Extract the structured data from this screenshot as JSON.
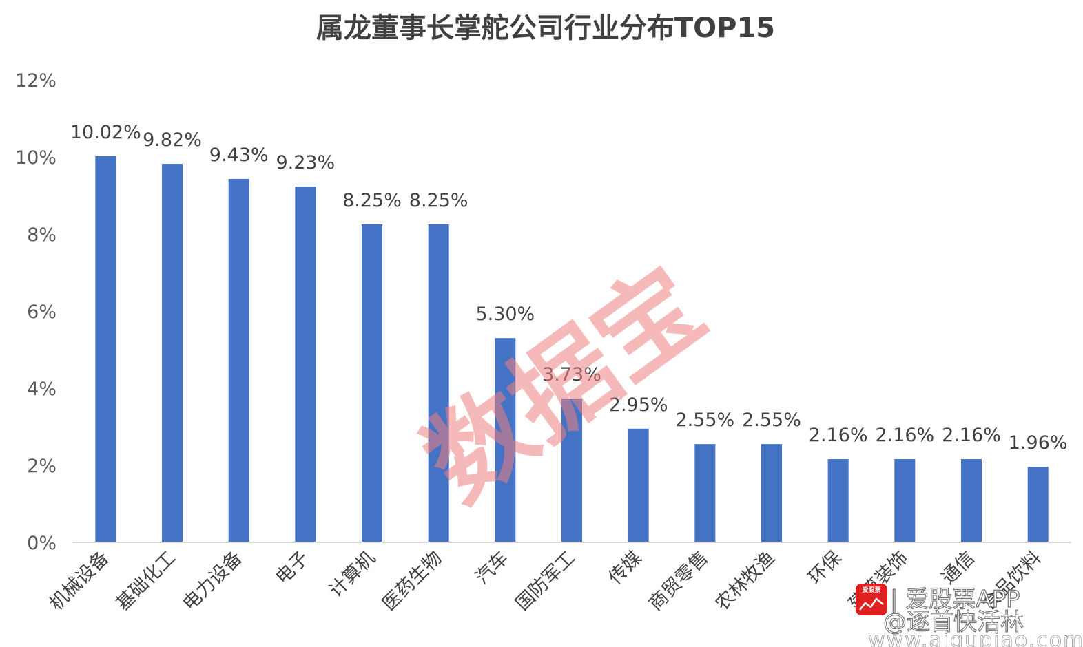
{
  "chart_data": {
    "type": "bar",
    "title": "属龙董事长掌舵公司行业分布TOP15",
    "categories": [
      "机械设备",
      "基础化工",
      "电力设备",
      "电子",
      "计算机",
      "医药生物",
      "汽车",
      "国防军工",
      "传媒",
      "商贸零售",
      "农林牧渔",
      "环保",
      "建筑装饰",
      "通信",
      "食品饮料"
    ],
    "values": [
      10.02,
      9.82,
      9.43,
      9.23,
      8.25,
      8.25,
      5.3,
      3.73,
      2.95,
      2.55,
      2.55,
      2.16,
      2.16,
      2.16,
      1.96
    ],
    "value_labels": [
      "10.02%",
      "9.82%",
      "9.43%",
      "9.23%",
      "8.25%",
      "8.25%",
      "5.30%",
      "3.73%",
      "2.95%",
      "2.55%",
      "2.55%",
      "2.16%",
      "2.16%",
      "2.16%",
      "1.96%"
    ],
    "yticks": [
      0,
      2,
      4,
      6,
      8,
      10,
      12
    ],
    "ytick_labels": [
      "0%",
      "2%",
      "4%",
      "6%",
      "8%",
      "10%",
      "12%"
    ],
    "ylim": [
      0,
      12
    ],
    "bar_color": "#4472C4",
    "grid": false,
    "legend": "none"
  },
  "watermark": {
    "text": "数据宝",
    "color": "#f08080"
  },
  "branding": {
    "logo_text": "爱股票",
    "logo_color": "#e02020",
    "text": "| 爱股票APP",
    "handle": "@逐首快活林",
    "url": "www.aigupiao.com"
  }
}
